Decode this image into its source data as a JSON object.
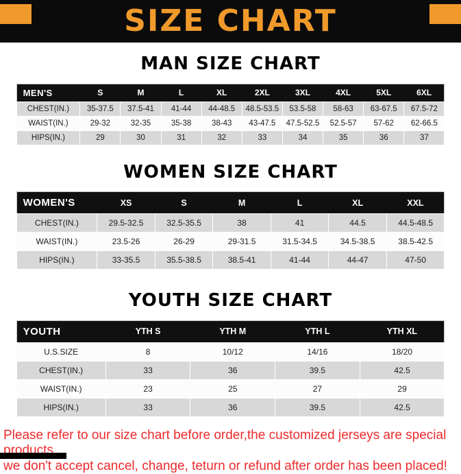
{
  "banner": {
    "title": "SIZE CHART"
  },
  "colors": {
    "accent_orange": "#F09A2B",
    "header_black": "#101010",
    "row_gray": "#D8D8D8",
    "notice_red": "#ED2A2C"
  },
  "sections": [
    {
      "id": "man",
      "heading": "MAN SIZE CHART",
      "columns": [
        "MEN'S",
        "S",
        "M",
        "L",
        "XL",
        "2XL",
        "3XL",
        "4XL",
        "5XL",
        "6XL"
      ],
      "rows": [
        {
          "label": "CHEST(IN.)",
          "shaded": true,
          "values": [
            "35-37.5",
            "37.5-41",
            "41-44",
            "44-48.5",
            "48.5-53.5",
            "53.5-58",
            "58-63",
            "63-67.5",
            "67.5-72"
          ]
        },
        {
          "label": "WAIST(IN.)",
          "shaded": false,
          "values": [
            "29-32",
            "32-35",
            "35-38",
            "38-43",
            "43-47.5",
            "47.5-52.5",
            "52.5-57",
            "57-62",
            "62-66.5"
          ]
        },
        {
          "label": "HIPS(IN.)",
          "shaded": true,
          "values": [
            "29",
            "30",
            "31",
            "32",
            "33",
            "34",
            "35",
            "36",
            "37"
          ]
        }
      ]
    },
    {
      "id": "women",
      "heading": "WOMEN SIZE CHART",
      "columns": [
        "WOMEN'S",
        "XS",
        "S",
        "M",
        "L",
        "XL",
        "XXL"
      ],
      "rows": [
        {
          "label": "CHEST(IN.)",
          "shaded": true,
          "values": [
            "29.5-32.5",
            "32.5-35.5",
            "38",
            "41",
            "44.5",
            "44.5-48.5"
          ]
        },
        {
          "label": "WAIST(IN.)",
          "shaded": false,
          "values": [
            "23.5-26",
            "26-29",
            "29-31.5",
            "31.5-34.5",
            "34.5-38.5",
            "38.5-42.5"
          ]
        },
        {
          "label": "HIPS(IN.)",
          "shaded": true,
          "values": [
            "33-35.5",
            "35.5-38.5",
            "38.5-41",
            "41-44",
            "44-47",
            "47-50"
          ]
        }
      ]
    },
    {
      "id": "youth",
      "heading": "YOUTH SIZE CHART",
      "columns": [
        "YOUTH",
        "YTH S",
        "YTH M",
        "YTH L",
        "YTH XL"
      ],
      "rows": [
        {
          "label": "U.S.SIZE",
          "shaded": false,
          "values": [
            "8",
            "10/12",
            "14/16",
            "18/20"
          ]
        },
        {
          "label": "CHEST(IN.)",
          "shaded": true,
          "values": [
            "33",
            "36",
            "39.5",
            "42.5"
          ]
        },
        {
          "label": "WAIST(IN.)",
          "shaded": false,
          "values": [
            "23",
            "25",
            "27",
            "29"
          ]
        },
        {
          "label": "HIPS(IN.)",
          "shaded": true,
          "values": [
            "33",
            "36",
            "39.5",
            "42.5"
          ]
        }
      ]
    }
  ],
  "notice": {
    "lines": [
      "Please refer to our size chart before order,the customized jerseys are special products,",
      "we don't accept cancel, change, teturn or refund after order has been placed!"
    ]
  }
}
